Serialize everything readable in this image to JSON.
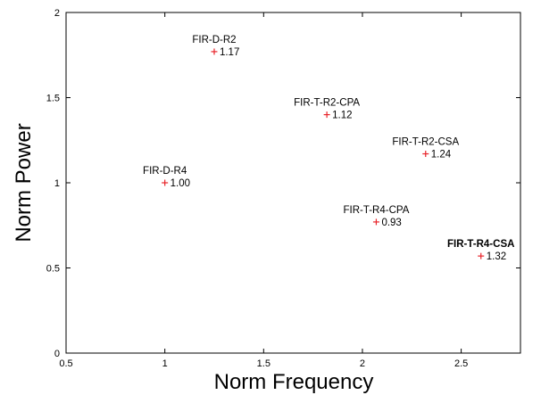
{
  "chart_data": {
    "type": "scatter",
    "title": "",
    "xlabel": "Norm Frequency",
    "ylabel": "Norm Power",
    "xlim": [
      0.5,
      2.8
    ],
    "ylim": [
      0,
      2
    ],
    "x_ticks": [
      "0.5",
      "1",
      "1.5",
      "2",
      "2.5"
    ],
    "y_ticks": [
      "0",
      "0.5",
      "1",
      "1.5",
      "2"
    ],
    "x_tick_values": [
      0.5,
      1,
      1.5,
      2,
      2.5
    ],
    "y_tick_values": [
      0,
      0.5,
      1,
      1.5,
      2
    ],
    "marker_color": "#e8242a",
    "grid": false,
    "points": [
      {
        "label": "FIR-D-R2",
        "x": 1.25,
        "y": 1.77,
        "value_label": "1.17",
        "bold": false
      },
      {
        "label": "FIR-T-R2-CPA",
        "x": 1.82,
        "y": 1.4,
        "value_label": "1.12",
        "bold": false
      },
      {
        "label": "FIR-T-R2-CSA",
        "x": 2.32,
        "y": 1.17,
        "value_label": "1.24",
        "bold": false
      },
      {
        "label": "FIR-D-R4",
        "x": 1.0,
        "y": 1.0,
        "value_label": "1.00",
        "bold": false
      },
      {
        "label": "FIR-T-R4-CPA",
        "x": 2.07,
        "y": 0.77,
        "value_label": "0.93",
        "bold": false
      },
      {
        "label": "FIR-T-R4-CSA",
        "x": 2.6,
        "y": 0.57,
        "value_label": "1.32",
        "bold": true
      }
    ]
  }
}
